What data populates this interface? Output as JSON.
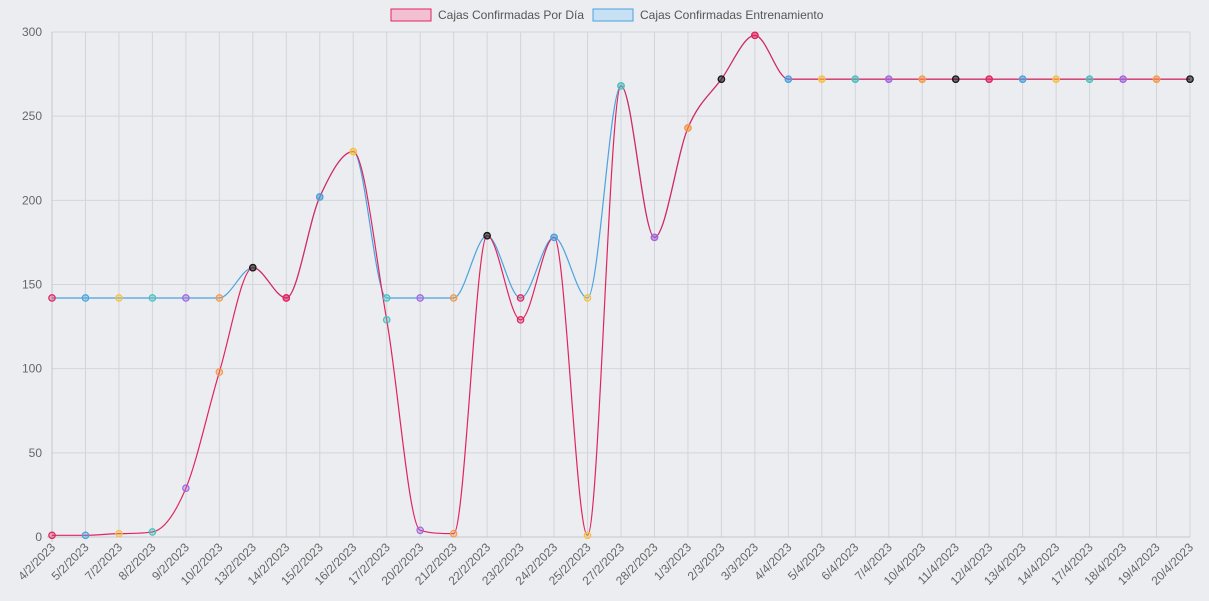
{
  "chart_data": {
    "type": "line",
    "categories": [
      "4/2/2023",
      "5/2/2023",
      "7/2/2023",
      "8/2/2023",
      "9/2/2023",
      "10/2/2023",
      "13/2/2023",
      "14/2/2023",
      "15/2/2023",
      "16/2/2023",
      "17/2/2023",
      "20/2/2023",
      "21/2/2023",
      "22/2/2023",
      "23/2/2023",
      "24/2/2023",
      "25/2/2023",
      "27/2/2023",
      "28/2/2023",
      "1/3/2023",
      "2/3/2023",
      "3/3/2023",
      "4/4/2023",
      "5/4/2023",
      "6/4/2023",
      "7/4/2023",
      "10/4/2023",
      "11/4/2023",
      "12/4/2023",
      "13/4/2023",
      "14/4/2023",
      "17/4/2023",
      "18/4/2023",
      "19/4/2023",
      "20/4/2023"
    ],
    "ylim": [
      0,
      300
    ],
    "yticks": [
      0,
      50,
      100,
      150,
      200,
      250,
      300
    ],
    "grid": true,
    "legend_position": "top",
    "series": [
      {
        "name": "Cajas Confirmadas Por Día",
        "color": "#e0245e",
        "fill": "#f3bfd3",
        "values": [
          1,
          1,
          2,
          3,
          29,
          98,
          160,
          142,
          202,
          229,
          129,
          4,
          2,
          179,
          129,
          178,
          1,
          268,
          178,
          243,
          272,
          298,
          272,
          272,
          272,
          272,
          272,
          272,
          272,
          272,
          272,
          272,
          272,
          272,
          272
        ]
      },
      {
        "name": "Cajas Confirmadas Entrenamiento",
        "color": "#4aa3df",
        "fill": "#c7e0f3",
        "values": [
          142,
          142,
          142,
          142,
          142,
          142,
          160,
          142,
          202,
          229,
          142,
          142,
          142,
          179,
          142,
          178,
          142,
          268,
          178,
          243,
          272,
          298,
          272,
          272,
          272,
          272,
          272,
          272,
          272,
          272,
          272,
          272,
          272,
          272,
          272
        ]
      }
    ],
    "point_colors": [
      "#e0245e",
      "#4aa3df",
      "#f5c242",
      "#4bc0c0",
      "#a066e0",
      "#f59a4a",
      "#1a1a1a"
    ]
  }
}
